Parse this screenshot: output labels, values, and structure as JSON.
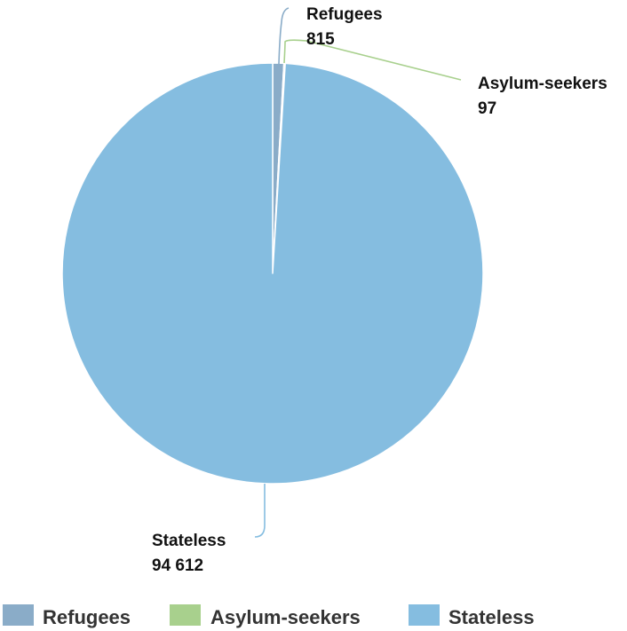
{
  "chart_data": {
    "type": "pie",
    "title": "",
    "series": [
      {
        "name": "Refugees",
        "value": 815,
        "value_label": "815",
        "color": "#8aacc8"
      },
      {
        "name": "Asylum-seekers",
        "value": 97,
        "value_label": "97",
        "color": "#a8d08d"
      },
      {
        "name": "Stateless",
        "value": 94612,
        "value_label": "94 612",
        "color": "#85bde0"
      }
    ],
    "start_angle": "12 o'clock",
    "direction": "clockwise",
    "legend": {
      "position": "bottom"
    }
  }
}
